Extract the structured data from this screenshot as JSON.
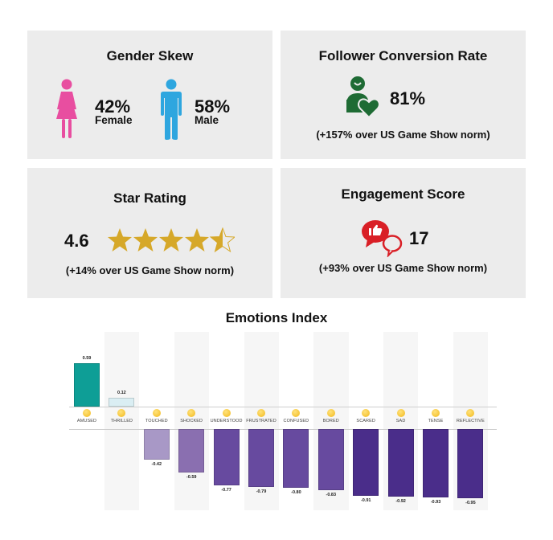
{
  "cards": {
    "gender": {
      "title": "Gender Skew",
      "female_pct": "42%",
      "female_label": "Female",
      "male_pct": "58%",
      "male_label": "Male",
      "female_color": "#e84ea0",
      "male_color": "#2ea6df"
    },
    "follower": {
      "title": "Follower Conversion Rate",
      "value": "81%",
      "note": "(+157% over US Game Show norm)",
      "icon_color": "#1e6b34"
    },
    "star": {
      "title": "Star Rating",
      "value": "4.6",
      "stars": 4.6,
      "note": "(+14% over US Game Show norm)",
      "star_color": "#d6a829"
    },
    "engagement": {
      "title": "Engagement Score",
      "value": "17",
      "note": "(+93% over US Game Show norm)",
      "icon_color": "#d91f26"
    }
  },
  "chart_data": {
    "type": "bar",
    "title": "Emotions Index",
    "xlabel": "",
    "ylabel": "",
    "ylim": [
      -1,
      0.65
    ],
    "grid": false,
    "legend": "none",
    "categories": [
      "AMUSED",
      "THRILLED",
      "TOUCHED",
      "SHOCKED",
      "UNDERSTOOD",
      "FRUSTRATED",
      "CONFUSED",
      "BORED",
      "SCARED",
      "SAD",
      "TENSE",
      "REFLECTIVE"
    ],
    "values": [
      0.59,
      0.12,
      -0.42,
      -0.59,
      -0.77,
      -0.79,
      -0.8,
      -0.83,
      -0.91,
      -0.92,
      -0.93,
      -0.95
    ],
    "value_labels": [
      "0.59",
      "0.12",
      "-0.42",
      "-0.59",
      "-0.77",
      "-0.79",
      "-0.80",
      "-0.83",
      "-0.91",
      "-0.92",
      "-0.93",
      "-0.95"
    ],
    "colors": [
      "#0e9e96",
      "#daeef3",
      "#a898c6",
      "#8a6fb0",
      "#674a9f",
      "#674a9f",
      "#674a9f",
      "#674a9f",
      "#4a2d8a",
      "#4a2d8a",
      "#4a2d8a",
      "#4a2d8a"
    ],
    "emojis": [
      "laughing-face",
      "grinning-face",
      "teary-face",
      "surprised-face",
      "relieved-face",
      "frustrated-face",
      "confused-face",
      "neutral-face",
      "screaming-face",
      "crying-face",
      "grimacing-face",
      "thinking-face"
    ]
  }
}
